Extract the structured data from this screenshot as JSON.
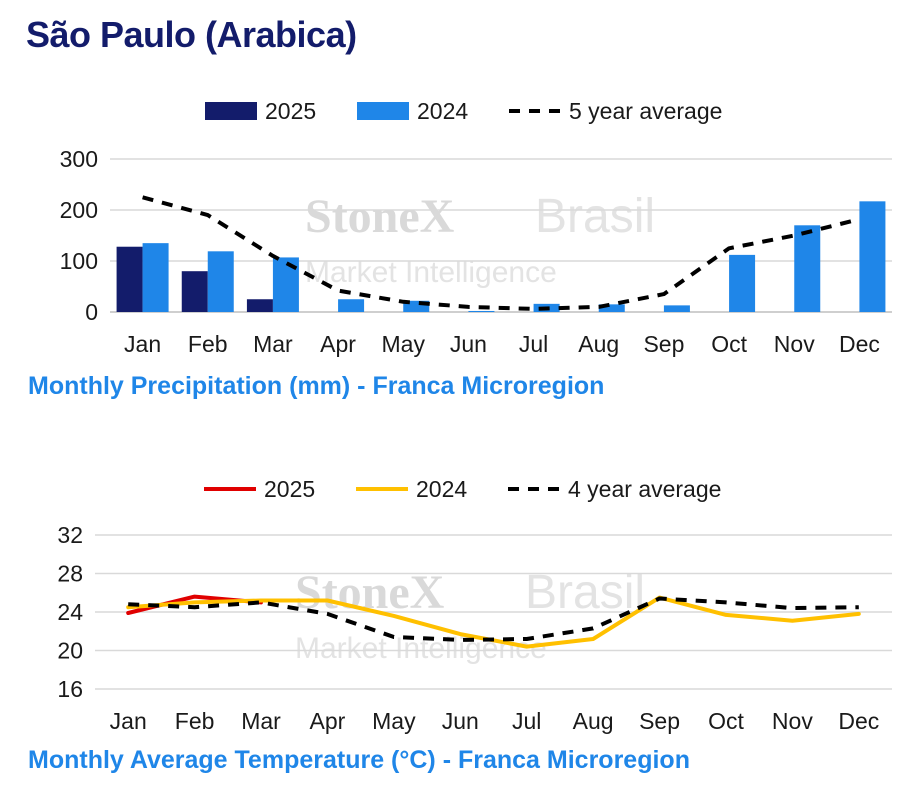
{
  "title": "São Paulo (Arabica)",
  "watermark": {
    "brand": "StoneX",
    "brand_suffix": "Brasil",
    "subtitle": "Market Intelligence"
  },
  "colors": {
    "navy": "#131c6b",
    "blue": "#1f86e8",
    "red": "#e00000",
    "yellow": "#ffc000",
    "black": "#000000"
  },
  "chart_data": [
    {
      "type": "bar",
      "title": "Monthly Precipitation (mm) - Franca Microregion",
      "categories": [
        "Jan",
        "Feb",
        "Mar",
        "Apr",
        "May",
        "Jun",
        "Jul",
        "Aug",
        "Sep",
        "Oct",
        "Nov",
        "Dec"
      ],
      "ylim": [
        0,
        300
      ],
      "yticks": [
        0,
        100,
        200,
        300
      ],
      "grid": true,
      "legend": "top",
      "series": [
        {
          "name": "2025",
          "kind": "bar",
          "color": "#131c6b",
          "values": [
            128,
            80,
            25,
            null,
            null,
            null,
            null,
            null,
            null,
            null,
            null,
            null
          ]
        },
        {
          "name": "2024",
          "kind": "bar",
          "color": "#1f86e8",
          "values": [
            135,
            119,
            107,
            25,
            22,
            2,
            16,
            15,
            13,
            112,
            170,
            217
          ]
        },
        {
          "name": "5 year average",
          "kind": "line",
          "style": "dashed",
          "color": "#000000",
          "values": [
            225,
            190,
            110,
            42,
            20,
            10,
            6,
            10,
            35,
            125,
            150,
            182
          ]
        }
      ]
    },
    {
      "type": "line",
      "title": "Monthly Average Temperature (°C) - Franca Microregion",
      "categories": [
        "Jan",
        "Feb",
        "Mar",
        "Apr",
        "May",
        "Jun",
        "Jul",
        "Aug",
        "Sep",
        "Oct",
        "Nov",
        "Dec"
      ],
      "ylim": [
        16,
        32
      ],
      "yticks": [
        16,
        20,
        24,
        28,
        32
      ],
      "grid": true,
      "legend": "top",
      "series": [
        {
          "name": "2025",
          "kind": "line",
          "color": "#e00000",
          "values": [
            23.9,
            25.6,
            25.0,
            null,
            null,
            null,
            null,
            null,
            null,
            null,
            null,
            null
          ]
        },
        {
          "name": "2024",
          "kind": "line",
          "color": "#ffc000",
          "values": [
            24.5,
            25.0,
            25.2,
            25.2,
            23.6,
            21.7,
            20.4,
            21.2,
            25.5,
            23.7,
            23.1,
            23.8
          ]
        },
        {
          "name": "4 year average",
          "kind": "line",
          "style": "dashed",
          "color": "#000000",
          "values": [
            24.8,
            24.5,
            25.0,
            23.8,
            21.4,
            21.1,
            21.2,
            22.3,
            25.4,
            25.0,
            24.4,
            24.5
          ]
        }
      ]
    }
  ]
}
